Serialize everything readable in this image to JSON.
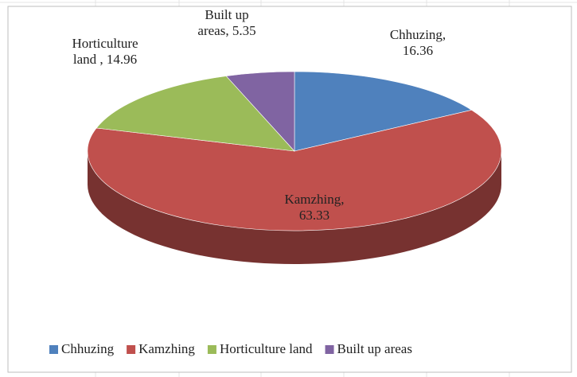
{
  "chart_data": {
    "type": "pie3d",
    "categories": [
      "Chhuzing",
      "Kamzhing",
      "Horticulture land",
      "Built up areas"
    ],
    "values": [
      16.36,
      63.33,
      14.96,
      5.35
    ],
    "value_labels": [
      "Chhuzing, 16.36",
      "Kamzhing, 63.33",
      "Horticulture land , 14.96",
      "Built up areas, 5.35"
    ],
    "colors": [
      "#4f81bd",
      "#c0504d",
      "#9bbb59",
      "#8064a2"
    ],
    "legend": "bottom"
  }
}
